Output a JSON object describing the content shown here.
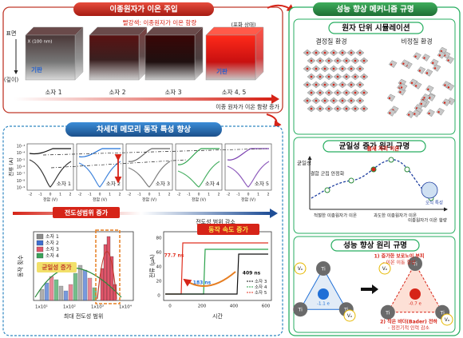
{
  "injection": {
    "title": "이종원자가 이온 주입",
    "note": "빨강색: 이종원자가 이온 함량",
    "saturated": "(포화 상태)",
    "surface": "표면",
    "depth": "(깊이)",
    "scale": "X (100 nm)",
    "substrate": "기판",
    "devices": [
      "소자 1",
      "소자 2",
      "소자 3",
      "소자 4, 5"
    ],
    "trend": "이종 원자가 이온 함량 증가"
  },
  "memory": {
    "title": "차세대 메모리 동작 특성 향상",
    "iv": {
      "y_label": "전류 (A)",
      "x_label": "전압 (V)",
      "yticks": [
        "10⁻³",
        "10⁻⁴",
        "10⁻⁵",
        "10⁻⁶",
        "10⁻⁷",
        "10⁻⁸",
        "10⁻⁹"
      ],
      "xticks": [
        "-2",
        "-1",
        "0",
        "1",
        "2"
      ],
      "devices": [
        "소자 1",
        "소자 2",
        "소자 3",
        "소자 4",
        "소자 5"
      ],
      "increase": "전도성범위 증가",
      "decrease": "전도성 범위 감소"
    },
    "histogram": {
      "y_label": "동작 횟수",
      "x_label": "최대 전도성 범위",
      "legend": [
        "소자 1",
        "소자 2",
        "소자 3",
        "소자 4"
      ],
      "xticks": [
        "1x10¹",
        "1x10²",
        "1x10³",
        "1x10⁴"
      ],
      "annotation": "균일성 증가"
    },
    "speed": {
      "title": "동작 속도 증가",
      "y_label": "전류 (μA)",
      "x_label": "시간",
      "yticks": [
        0,
        20,
        40,
        60,
        80
      ],
      "xticks": [
        0,
        200,
        400,
        600
      ],
      "annotations": [
        "77.7 ns",
        "183 ns",
        "409 ns"
      ],
      "legend": [
        "소자 3",
        "소자 4",
        "소자 5"
      ]
    }
  },
  "mechanism": {
    "title": "성능 향상 메커니즘 규명",
    "simulation": {
      "title": "원자 단위 시뮬레이션",
      "crystalline": "결정질 환경",
      "amorphous": "비정질 환경"
    },
    "uniformity": {
      "title": "균일성 증가 원리 규명",
      "y_label": "균일성",
      "labels": [
        "결함 군집 안정화",
        "틈새 자리 이온",
        "오직 특성"
      ],
      "x_labels": [
        "적절한 이종원자가 이온",
        "과도한 이종원자가 이온",
        "이종원자가 이온 함량"
      ]
    },
    "principle": {
      "title": "성능 향상 원리 규명",
      "point1": "1) 증가한 보로노이 부피",
      "point1b": "- 이온 이동 향상",
      "point2": "2) 작은 바더(Bader) 전하",
      "point2b": "- 정전기적 인력 감소",
      "atom_ti": "Ti",
      "atom_vo": "Vₒ",
      "charge_before": "-1.1 e",
      "charge_after": "-0.7 e"
    }
  }
}
